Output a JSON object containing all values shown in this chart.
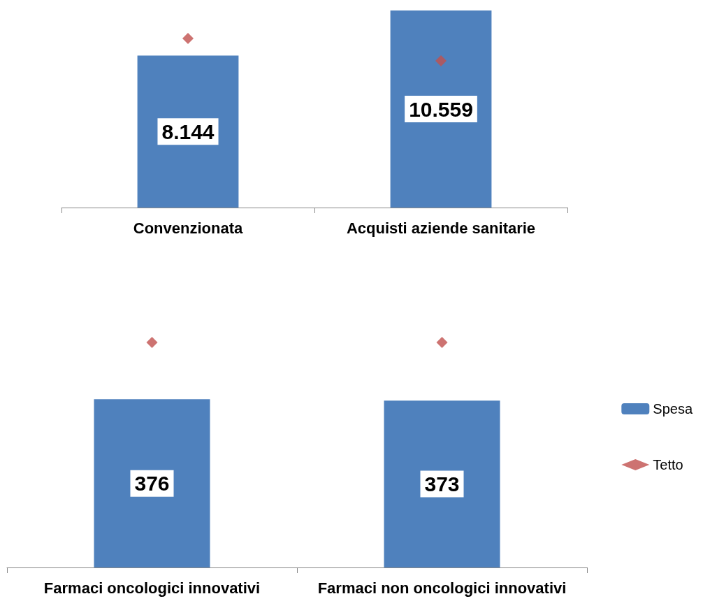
{
  "chart_data": [
    {
      "type": "bar",
      "categories": [
        "Convenzionata",
        "Acquisti aziende sanitarie"
      ],
      "legend": false,
      "grid": false,
      "series": [
        {
          "color": "#4f81bd",
          "values": [
            8144,
            10559
          ],
          "value_labels": [
            "8.144",
            "10.559"
          ]
        },
        {
          "type": "scatter",
          "color": "#c0504d",
          "marker": "diamond",
          "values": [
            9060,
            7860
          ]
        }
      ]
    },
    {
      "type": "bar",
      "categories": [
        "Farmaci oncologici innovativi",
        "Farmaci non oncologici innovativi"
      ],
      "legend": "right",
      "grid": false,
      "series": [
        {
          "name": "Spesa",
          "color": "#4f81bd",
          "values": [
            376,
            373
          ],
          "value_labels": [
            "376",
            "373"
          ]
        },
        {
          "name": "Tetto",
          "type": "scatter",
          "color": "#c0504d",
          "marker": "diamond",
          "values": [
            503,
            503
          ]
        }
      ]
    }
  ]
}
